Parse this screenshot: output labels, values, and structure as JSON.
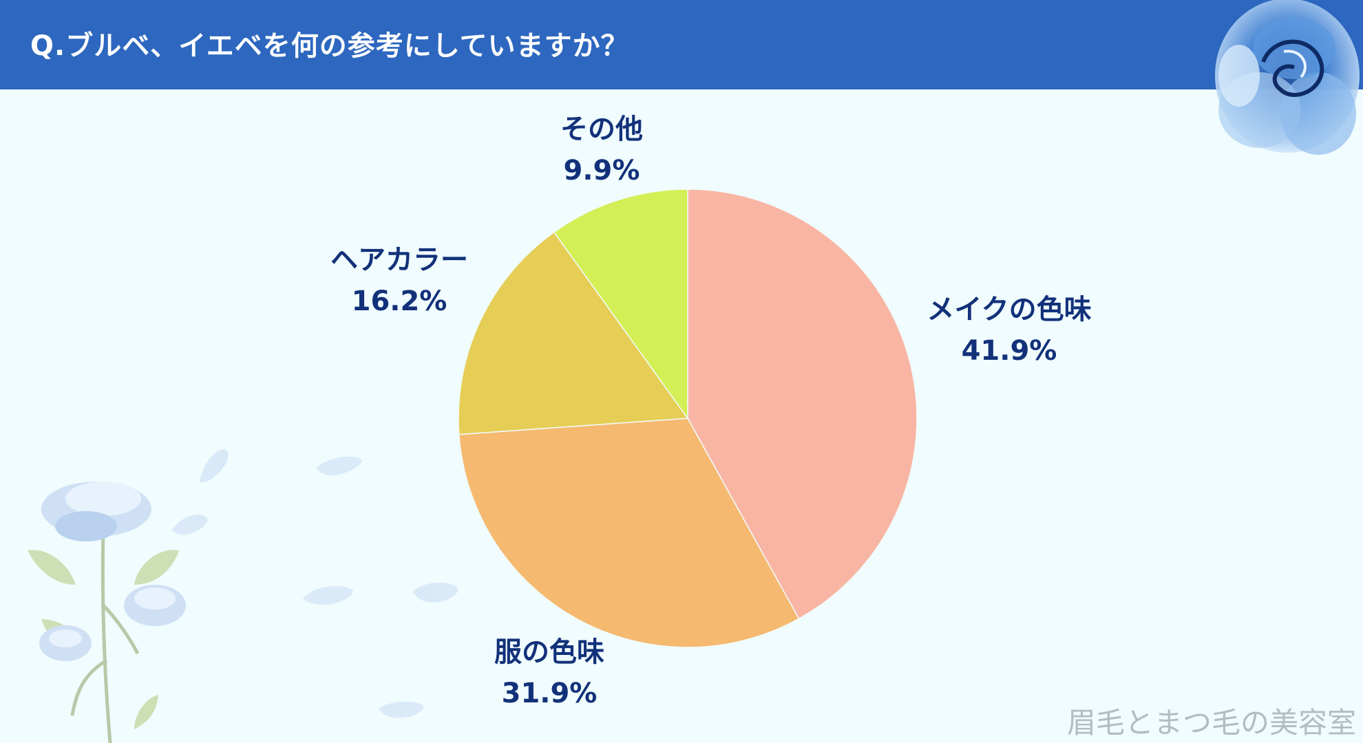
{
  "header": {
    "title": "Q.ブルベ、イエベを何の参考にしていますか？"
  },
  "watermark": "眉毛とまつ毛の美容室",
  "colors": {
    "header": "#2d67bf",
    "background": "#f0fcfd",
    "label": "#12317a",
    "slices": [
      "#f9b5a3",
      "#f6b970",
      "#e6cd56",
      "#d4ee55"
    ]
  },
  "chart_data": {
    "type": "pie",
    "title": "Q.ブルベ、イエベを何の参考にしていますか？",
    "start": "12 o'clock, clockwise",
    "slices": [
      {
        "label": "メイクの色味",
        "value": 41.9,
        "value_label": "41.9%"
      },
      {
        "label": "服の色味",
        "value": 31.9,
        "value_label": "31.9%"
      },
      {
        "label": "ヘアカラー",
        "value": 16.2,
        "value_label": "16.2%"
      },
      {
        "label": "その他",
        "value": 9.9,
        "value_label": "9.9%"
      }
    ]
  },
  "icons": [
    "blue-rose-icon",
    "blue-rose-branch-icon",
    "petal-icon"
  ]
}
